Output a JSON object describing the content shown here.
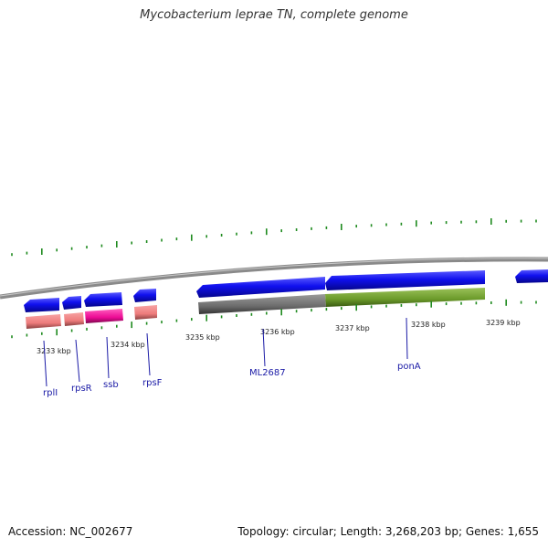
{
  "title": "Mycobacterium leprae TN, complete genome",
  "footer": {
    "accession": "Accession: NC_002677",
    "summary": "Topology: circular; Length: 3,268,203 bp; Genes: 1,655"
  },
  "colors": {
    "backbone": "#8a8a8a",
    "forward_gene": "#0a0ae6",
    "rrna_pink": "#f08080",
    "ssb_magenta": "#ee1199",
    "orf_gray": "#6e6e6e",
    "ponA_green": "#6b9a2a",
    "tick_green": "#1e8a1e",
    "label_blue": "#1a1aa6"
  },
  "tick_labels": [
    "3233 kbp",
    "3234 kbp",
    "3235 kbp",
    "3236 kbp",
    "3237 kbp",
    "3238 kbp",
    "3239 kbp"
  ],
  "gene_labels": [
    "rplI",
    "rpsR",
    "ssb",
    "rpsF",
    "ML2687",
    "ponA"
  ]
}
